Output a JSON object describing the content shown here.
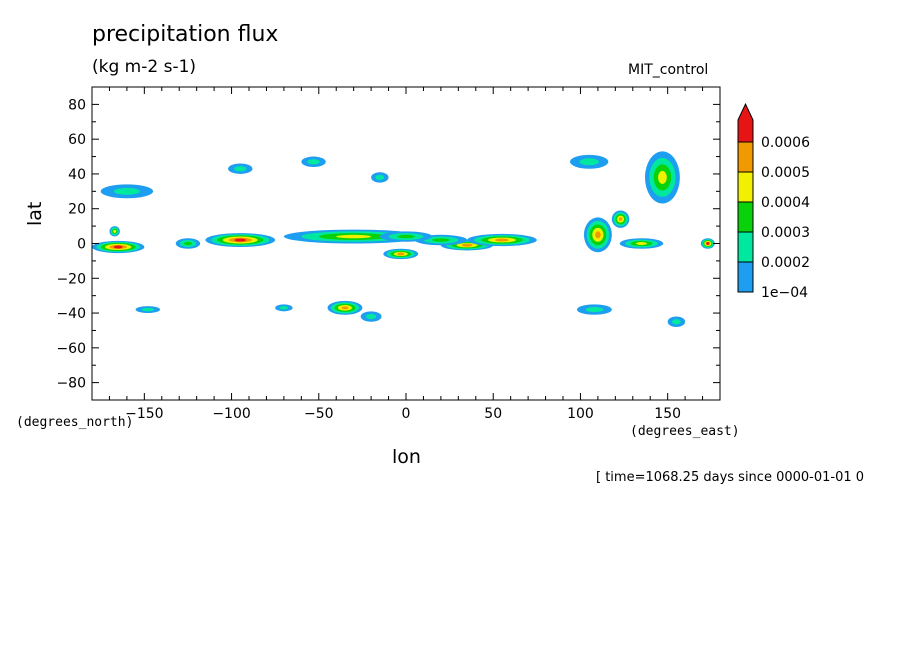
{
  "chart_data": {
    "type": "heatmap",
    "title": "precipitation flux",
    "units": "(kg m-2 s-1)",
    "run_label": "MIT_control",
    "xlabel": "lon",
    "ylabel": "lat",
    "x_units": "(degrees_east)",
    "y_units": "(degrees_north)",
    "time_info": "[ time=1068.25 days since 0000-01-01 0",
    "xlim": [
      -180,
      180
    ],
    "ylim": [
      -90,
      90
    ],
    "x_ticks": [
      -150,
      -100,
      -50,
      0,
      50,
      100,
      150
    ],
    "y_ticks": [
      80,
      60,
      40,
      20,
      0,
      -20,
      -40,
      -60,
      -80
    ],
    "legend_position": "right",
    "colorbar": {
      "levels": [
        "1e-04",
        "0.0002",
        "0.0003",
        "0.0004",
        "0.0005",
        "0.0006"
      ],
      "colors": [
        "#1e9ef0",
        "#00e8a0",
        "#0ad20a",
        "#f0f000",
        "#f09a00",
        "#e61414"
      ]
    },
    "regions": [
      {
        "lon": -165,
        "lat": -2,
        "w": 30,
        "h": 7,
        "level": 5
      },
      {
        "lon": -167,
        "lat": 7,
        "w": 6,
        "h": 6,
        "level": 3
      },
      {
        "lon": -160,
        "lat": 30,
        "w": 30,
        "h": 8,
        "level": 1
      },
      {
        "lon": -125,
        "lat": 0,
        "w": 14,
        "h": 6,
        "level": 2
      },
      {
        "lon": -95,
        "lat": 2,
        "w": 40,
        "h": 8,
        "level": 5
      },
      {
        "lon": -95,
        "lat": 43,
        "w": 14,
        "h": 6,
        "level": 1
      },
      {
        "lon": -53,
        "lat": 47,
        "w": 14,
        "h": 6,
        "level": 1
      },
      {
        "lon": -30,
        "lat": 4,
        "w": 80,
        "h": 8,
        "level": 3
      },
      {
        "lon": -3,
        "lat": -6,
        "w": 20,
        "h": 6,
        "level": 4
      },
      {
        "lon": -15,
        "lat": 38,
        "w": 10,
        "h": 6,
        "level": 1
      },
      {
        "lon": 35,
        "lat": -1,
        "w": 30,
        "h": 6,
        "level": 4
      },
      {
        "lon": 55,
        "lat": 2,
        "w": 40,
        "h": 7,
        "level": 4
      },
      {
        "lon": 20,
        "lat": 2,
        "w": 30,
        "h": 6,
        "level": 2
      },
      {
        "lon": 105,
        "lat": 47,
        "w": 22,
        "h": 8,
        "level": 1
      },
      {
        "lon": 135,
        "lat": 0,
        "w": 25,
        "h": 6,
        "level": 3
      },
      {
        "lon": 110,
        "lat": 5,
        "w": 16,
        "h": 20,
        "level": 4
      },
      {
        "lon": 123,
        "lat": 14,
        "w": 10,
        "h": 10,
        "level": 4
      },
      {
        "lon": 147,
        "lat": 38,
        "w": 20,
        "h": 30,
        "level": 3
      },
      {
        "lon": 173,
        "lat": 0,
        "w": 8,
        "h": 6,
        "level": 5
      },
      {
        "lon": -35,
        "lat": -37,
        "w": 20,
        "h": 8,
        "level": 4
      },
      {
        "lon": -20,
        "lat": -42,
        "w": 12,
        "h": 6,
        "level": 1
      },
      {
        "lon": -148,
        "lat": -38,
        "w": 14,
        "h": 4,
        "level": 1
      },
      {
        "lon": -70,
        "lat": -37,
        "w": 10,
        "h": 4,
        "level": 1
      },
      {
        "lon": 108,
        "lat": -38,
        "w": 20,
        "h": 6,
        "level": 1
      },
      {
        "lon": 155,
        "lat": -45,
        "w": 10,
        "h": 6,
        "level": 1
      },
      {
        "lon": 0,
        "lat": 4,
        "w": 30,
        "h": 6,
        "level": 2
      }
    ]
  }
}
